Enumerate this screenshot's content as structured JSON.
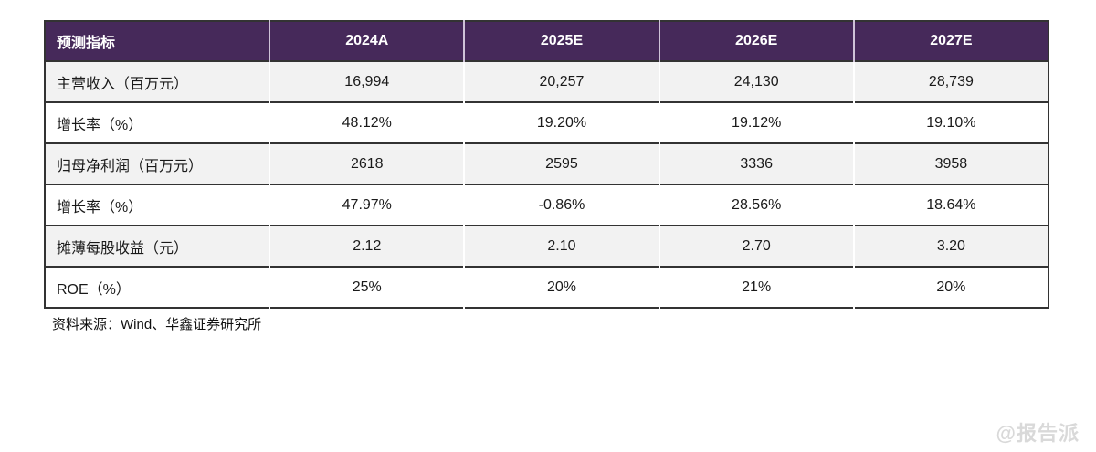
{
  "table": {
    "header": {
      "indicator_label": "预测指标",
      "years": [
        "2024A",
        "2025E",
        "2026E",
        "2027E"
      ]
    },
    "rows": [
      {
        "label": "主营收入（百万元）",
        "values": [
          "16,994",
          "20,257",
          "24,130",
          "28,739"
        ]
      },
      {
        "label": "增长率（%）",
        "values": [
          "48.12%",
          "19.20%",
          "19.12%",
          "19.10%"
        ]
      },
      {
        "label": "归母净利润（百万元）",
        "values": [
          "2618",
          "2595",
          "3336",
          "3958"
        ]
      },
      {
        "label": "增长率（%）",
        "values": [
          "47.97%",
          "-0.86%",
          "28.56%",
          "18.64%"
        ]
      },
      {
        "label": "摊薄每股收益（元）",
        "values": [
          "2.12",
          "2.10",
          "2.70",
          "3.20"
        ]
      },
      {
        "label": "ROE（%）",
        "values": [
          "25%",
          "20%",
          "21%",
          "20%"
        ]
      }
    ],
    "source_note": "资料来源：Wind、华鑫证券研究所"
  },
  "watermark": "@报告派",
  "colors": {
    "header_bg": "#46295A",
    "header_text": "#FFFFFF",
    "stripe_row_bg": "#F2F2F2",
    "row_border": "#333333",
    "body_text": "#1A1A1A",
    "watermark_text": "#D9D9D9"
  }
}
